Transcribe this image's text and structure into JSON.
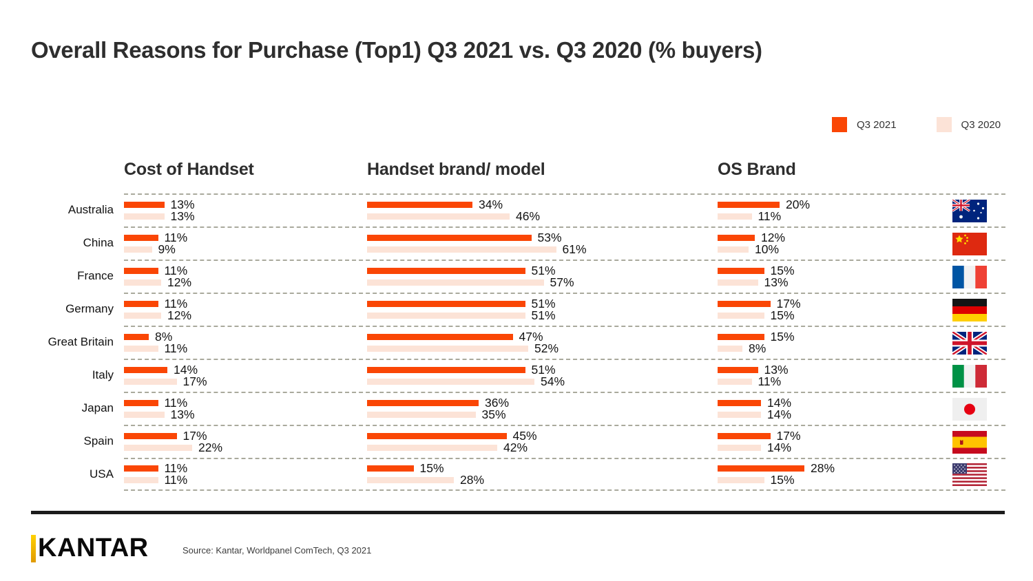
{
  "title": "Overall Reasons for Purchase (Top1) Q3 2021 vs. Q3 2020 (% buyers)",
  "legend": [
    {
      "label": "Q3 2021",
      "color": "#FA4605"
    },
    {
      "label": "Q3 2020",
      "color": "#FCE3D7"
    }
  ],
  "columns": [
    "Cost of Handset",
    "Handset brand/ model",
    "OS Brand"
  ],
  "rows": [
    {
      "country": "Australia",
      "flag": "australia",
      "cost": [
        "13%",
        "13%"
      ],
      "brand": [
        "34%",
        "46%"
      ],
      "os": [
        "20%",
        "11%"
      ]
    },
    {
      "country": "China",
      "flag": "china",
      "cost": [
        "11%",
        "9%"
      ],
      "brand": [
        "53%",
        "61%"
      ],
      "os": [
        "12%",
        "10%"
      ]
    },
    {
      "country": "France",
      "flag": "france",
      "cost": [
        "11%",
        "12%"
      ],
      "brand": [
        "51%",
        "57%"
      ],
      "os": [
        "15%",
        "13%"
      ]
    },
    {
      "country": "Germany",
      "flag": "germany",
      "cost": [
        "11%",
        "12%"
      ],
      "brand": [
        "51%",
        "51%"
      ],
      "os": [
        "17%",
        "15%"
      ]
    },
    {
      "country": "Great Britain",
      "flag": "great-britain",
      "cost": [
        "8%",
        "11%"
      ],
      "brand": [
        "47%",
        "52%"
      ],
      "os": [
        "15%",
        "8%"
      ]
    },
    {
      "country": "Italy",
      "flag": "italy",
      "cost": [
        "14%",
        "17%"
      ],
      "brand": [
        "51%",
        "54%"
      ],
      "os": [
        "13%",
        "11%"
      ]
    },
    {
      "country": "Japan",
      "flag": "japan",
      "cost": [
        "11%",
        "13%"
      ],
      "brand": [
        "36%",
        "35%"
      ],
      "os": [
        "14%",
        "14%"
      ]
    },
    {
      "country": "Spain",
      "flag": "spain",
      "cost": [
        "17%",
        "22%"
      ],
      "brand": [
        "45%",
        "42%"
      ],
      "os": [
        "17%",
        "14%"
      ]
    },
    {
      "country": "USA",
      "flag": "usa",
      "cost": [
        "11%",
        "11%"
      ],
      "brand": [
        "15%",
        "28%"
      ],
      "os": [
        "28%",
        "15%"
      ]
    }
  ],
  "footer": {
    "logo": "KANTAR",
    "source": "Source: Kantar, Worldpanel ComTech, Q3 2021"
  },
  "chart_data": {
    "type": "bar",
    "orientation": "horizontal",
    "title": "Overall Reasons for Purchase (Top1) Q3 2021 vs. Q3 2020 (% buyers)",
    "unit": "% buyers",
    "categories": [
      "Australia",
      "China",
      "France",
      "Germany",
      "Great Britain",
      "Italy",
      "Japan",
      "Spain",
      "USA"
    ],
    "legend": [
      "Q3 2021",
      "Q3 2020"
    ],
    "legend_position": "top-right",
    "value_labels": true,
    "grid": "dashed-row-separators",
    "colors": {
      "Q3 2021": "#FA4605",
      "Q3 2020": "#FCE3D7"
    },
    "panels": [
      {
        "title": "Cost of Handset",
        "series": [
          {
            "name": "Q3 2021",
            "values": [
              13,
              11,
              11,
              11,
              8,
              14,
              11,
              17,
              11
            ]
          },
          {
            "name": "Q3 2020",
            "values": [
              13,
              9,
              12,
              12,
              11,
              17,
              13,
              22,
              11
            ]
          }
        ]
      },
      {
        "title": "Handset brand/ model",
        "series": [
          {
            "name": "Q3 2021",
            "values": [
              34,
              53,
              51,
              51,
              47,
              51,
              36,
              45,
              15
            ]
          },
          {
            "name": "Q3 2020",
            "values": [
              46,
              61,
              57,
              51,
              52,
              54,
              35,
              42,
              28
            ]
          }
        ]
      },
      {
        "title": "OS Brand",
        "series": [
          {
            "name": "Q3 2021",
            "values": [
              20,
              12,
              15,
              17,
              15,
              13,
              14,
              17,
              28
            ]
          },
          {
            "name": "Q3 2020",
            "values": [
              11,
              10,
              13,
              15,
              8,
              11,
              14,
              14,
              15
            ]
          }
        ]
      }
    ]
  }
}
